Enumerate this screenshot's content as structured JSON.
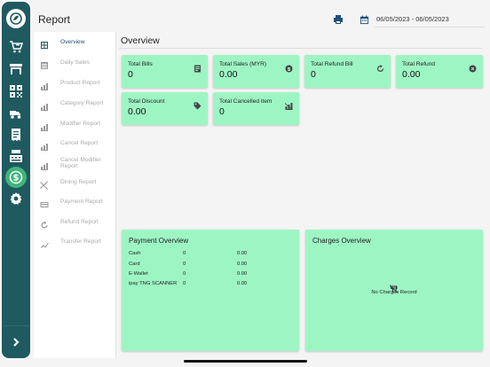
{
  "header": {
    "title": "Report",
    "date_range": "06/05/2023 - 06/05/2023",
    "icons": [
      "print-icon",
      "calendar-icon"
    ]
  },
  "rail": {
    "items": [
      {
        "name": "logo-icon"
      },
      {
        "name": "cart-icon"
      },
      {
        "name": "store-icon"
      },
      {
        "name": "qr-code-icon"
      },
      {
        "name": "delivery-icon"
      },
      {
        "name": "receipt-icon"
      },
      {
        "name": "cash-register-icon"
      },
      {
        "name": "dollar-icon",
        "active": true
      },
      {
        "name": "settings-icon"
      }
    ],
    "expand_icon": "chevron-right-icon"
  },
  "submenu": {
    "items": [
      {
        "label": "Overview",
        "icon": "grid-icon",
        "active": true
      },
      {
        "label": "Daily Sales",
        "icon": "table-icon"
      },
      {
        "label": "Product Report",
        "icon": "chart-icon"
      },
      {
        "label": "Category Report",
        "icon": "chart-icon"
      },
      {
        "label": "Modifier Report",
        "icon": "chart-icon"
      },
      {
        "label": "Cancel Report",
        "icon": "chart-icon"
      },
      {
        "label": "Cancel Modifier Report",
        "icon": "chart-icon"
      },
      {
        "label": "Dining Report",
        "icon": "utensils-icon"
      },
      {
        "label": "Payment Report",
        "icon": "card-icon"
      },
      {
        "label": "Refund Report",
        "icon": "refresh-icon"
      },
      {
        "label": "Transfer Report",
        "icon": "transfer-icon"
      }
    ]
  },
  "main": {
    "title": "Overview",
    "cards": [
      {
        "label": "Total Bills",
        "value": "0",
        "icon": "bill-icon"
      },
      {
        "label": "Total Sales (MYR)",
        "value": "0.00",
        "icon": "coin-icon"
      },
      {
        "label": "Total Refund Bill",
        "value": "0",
        "icon": "refresh-icon"
      },
      {
        "label": "Total Refund",
        "value": "0.00",
        "icon": "cancel-circle-icon"
      },
      {
        "label": "Total Discount",
        "value": "0.00",
        "icon": "tag-icon"
      },
      {
        "label": "Total Cancelled item",
        "value": "0",
        "icon": "cancelled-chart-icon"
      }
    ],
    "payment_overview": {
      "title": "Payment Overview",
      "rows": [
        {
          "method": "Cash",
          "count": "0",
          "amount": "0.00"
        },
        {
          "method": "Card",
          "count": "0",
          "amount": "0.00"
        },
        {
          "method": "E-Wallet",
          "count": "0",
          "amount": "0.00"
        },
        {
          "method": "ipay TNG SCANNER",
          "count": "0",
          "amount": "0.00"
        }
      ]
    },
    "charges_overview": {
      "title": "Charges Overview",
      "empty_text": "No Charges Record"
    }
  },
  "colors": {
    "rail": "#1f5a60",
    "card": "#9ef5c4",
    "active_rail": "#3fb57a",
    "accent_text": "#1f4f7a"
  }
}
